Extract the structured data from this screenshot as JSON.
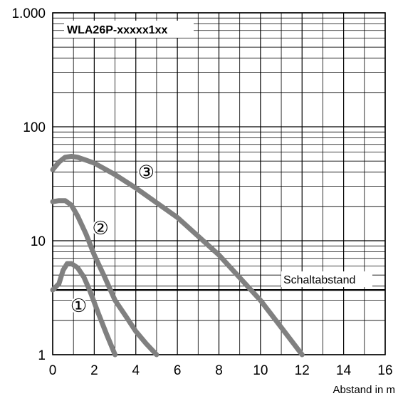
{
  "chart_data": {
    "type": "line",
    "title": "WLA26P-xxxxx1xx",
    "xlabel": "Abstand in m",
    "ylabel": "",
    "xlim": [
      0,
      16
    ],
    "ylim": [
      1,
      1000
    ],
    "yscale": "log",
    "grid": true,
    "x_ticks": [
      0,
      2,
      4,
      6,
      8,
      10,
      12,
      14,
      16
    ],
    "x_tick_labels": [
      "0",
      "2",
      "4",
      "6",
      "8",
      "10",
      "12",
      "14",
      "16"
    ],
    "y_ticks": [
      1,
      10,
      100,
      1000
    ],
    "y_tick_labels": [
      "1",
      "10",
      "100",
      "1.000"
    ],
    "threshold": {
      "label": "Schaltabstand",
      "value": 3.7
    },
    "curve_color": "#808080",
    "series": [
      {
        "label": "①",
        "x": [
          0,
          0.3,
          0.5,
          0.7,
          0.9,
          1.2,
          1.5,
          1.8,
          2.2,
          2.6,
          3.0
        ],
        "y": [
          3.7,
          4.2,
          5.5,
          6.3,
          6.3,
          5.8,
          4.8,
          3.6,
          2.3,
          1.5,
          1.0
        ]
      },
      {
        "label": "②",
        "x": [
          0,
          0.3,
          0.6,
          0.9,
          1.2,
          1.6,
          2.0,
          2.5,
          3.0,
          3.5,
          4.0,
          4.5,
          5.0
        ],
        "y": [
          22,
          22.5,
          22.5,
          20.5,
          16.5,
          11.5,
          7.5,
          4.8,
          3.0,
          2.2,
          1.6,
          1.25,
          1.0
        ]
      },
      {
        "label": "③",
        "x": [
          0,
          0.3,
          0.6,
          0.9,
          1.2,
          1.6,
          2.0,
          3.0,
          4.0,
          6.0,
          8.0,
          10.0,
          12.0
        ],
        "y": [
          42,
          49,
          54,
          55,
          54,
          51,
          48,
          38,
          29,
          16,
          7.5,
          3.0,
          1.0
        ]
      }
    ]
  }
}
